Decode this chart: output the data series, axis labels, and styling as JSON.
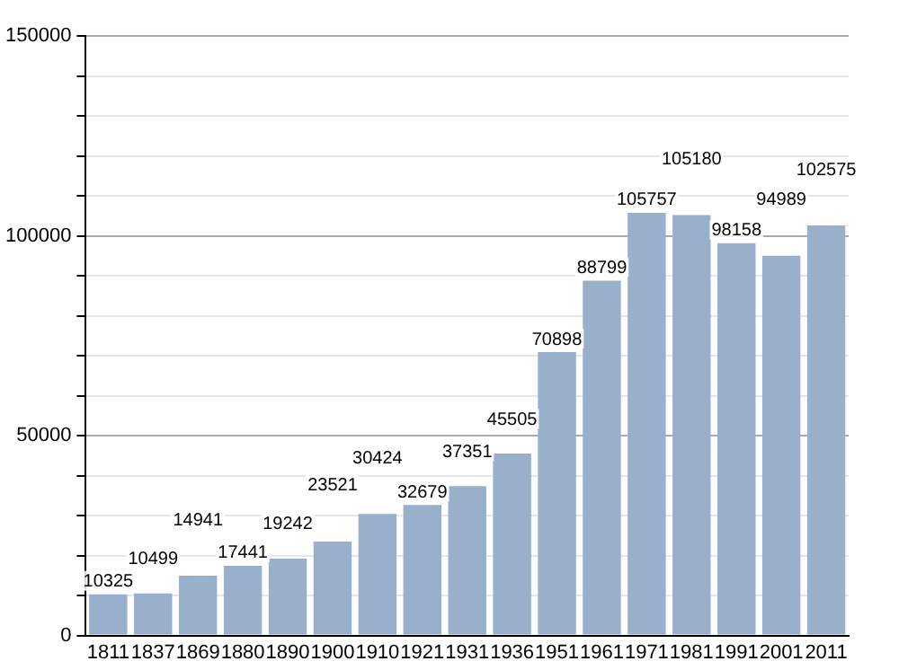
{
  "chart_data": {
    "type": "bar",
    "categories": [
      "1811",
      "1837",
      "1869",
      "1880",
      "1890",
      "1900",
      "1910",
      "1921",
      "1931",
      "1936",
      "1951",
      "1961",
      "1971",
      "1981",
      "1991",
      "2001",
      "2011"
    ],
    "values": [
      10325,
      10499,
      14941,
      17441,
      19242,
      23521,
      30424,
      32679,
      37351,
      45505,
      70898,
      88799,
      105757,
      105180,
      98158,
      94989,
      102575
    ],
    "color": "#98b0cb",
    "ylim": [
      0,
      150000
    ],
    "yticks": [
      0,
      {
        "value": 10000,
        "label": null
      },
      {
        "value": 20000,
        "label": null
      },
      {
        "value": 30000,
        "label": null
      },
      {
        "value": 40000,
        "label": null
      },
      50000,
      {
        "value": 60000,
        "label": null
      },
      {
        "value": 70000,
        "label": null
      },
      {
        "value": 80000,
        "label": null
      },
      {
        "value": 90000,
        "label": null
      },
      100000,
      {
        "value": 110000,
        "label": null
      },
      {
        "value": 120000,
        "label": null
      },
      {
        "value": 130000,
        "label": null
      },
      {
        "value": 140000,
        "label": null
      },
      150000
    ],
    "grid": "y",
    "data_labels": true
  }
}
